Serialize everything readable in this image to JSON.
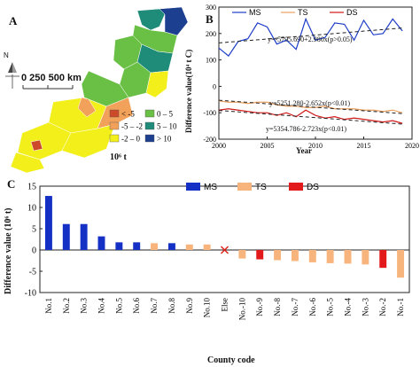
{
  "panel_a": {
    "letter": "A",
    "scale_label": "0 250 500 km",
    "north_label": "N",
    "unit_label": "10⁶ t",
    "legend": [
      {
        "label": "< -5",
        "color": "#cc4a2a"
      },
      {
        "label": "-5 – -2",
        "color": "#f2a15a"
      },
      {
        "label": "-2 – 0",
        "color": "#f3ef1a"
      },
      {
        "label": "0 – 5",
        "color": "#6ac045"
      },
      {
        "label": "5 – 10",
        "color": "#1f8c7a"
      },
      {
        "label": "> 10",
        "color": "#1d3f8f"
      }
    ]
  },
  "panel_b": {
    "letter": "B",
    "ylabel": "Difference value(10⁴ t C)",
    "xlabel": "Year",
    "legend": [
      "MS",
      "TS",
      "DS"
    ],
    "eq_ms": "y=-5795.690+2.980x(p>0.05)",
    "eq_ts": "y=5251.280-2.652x(p<0.01)",
    "eq_ds": "y=5354.786-2.723x(p<0.01)"
  },
  "panel_c": {
    "letter": "C",
    "ylabel": "Difference value (10⁶ t)",
    "xlabel": "County code",
    "legend": [
      "MS",
      "TS",
      "DS"
    ],
    "else_label": "Else"
  },
  "colors": {
    "ms": "#1530c4",
    "ts": "#f7b47c",
    "ds": "#e31a1c",
    "ms_line": "#1c3cc8",
    "ts_line": "#e8a060",
    "ds_line": "#d01818",
    "else_marker": "#e0241a"
  },
  "chart_data": [
    {
      "type": "line",
      "title": "",
      "xlabel": "Year",
      "ylabel": "Difference value(10⁴ t C)",
      "xlim": [
        2000,
        2020
      ],
      "ylim": [
        -200,
        300
      ],
      "xticks": [
        2000,
        2005,
        2010,
        2015,
        2020
      ],
      "yticks": [
        -200,
        -100,
        0,
        100,
        200,
        300
      ],
      "x": [
        2000,
        2001,
        2002,
        2003,
        2004,
        2005,
        2006,
        2007,
        2008,
        2009,
        2010,
        2011,
        2012,
        2013,
        2014,
        2015,
        2016,
        2017,
        2018,
        2019
      ],
      "series": [
        {
          "name": "MS",
          "values": [
            145,
            115,
            170,
            180,
            240,
            225,
            160,
            175,
            140,
            255,
            175,
            185,
            240,
            235,
            175,
            250,
            195,
            200,
            255,
            210
          ]
        },
        {
          "name": "TS",
          "values": [
            -55,
            -60,
            -60,
            -65,
            -60,
            -60,
            -70,
            -75,
            -75,
            -80,
            -80,
            -75,
            -85,
            -85,
            -85,
            -90,
            -90,
            -95,
            -90,
            -100
          ]
        },
        {
          "name": "DS",
          "values": [
            -90,
            -85,
            -90,
            -95,
            -100,
            -100,
            -110,
            -100,
            -115,
            -90,
            -110,
            -120,
            -115,
            -125,
            -120,
            -125,
            -130,
            -135,
            -130,
            -140
          ]
        }
      ],
      "trends": [
        {
          "name": "MS",
          "intercept": -5795.69,
          "slope": 2.98
        },
        {
          "name": "TS",
          "intercept": 5251.28,
          "slope": -2.652
        },
        {
          "name": "DS",
          "intercept": 5354.786,
          "slope": -2.723
        }
      ],
      "legend_position": "top"
    },
    {
      "type": "bar",
      "title": "",
      "xlabel": "County code",
      "ylabel": "Difference value (10⁶ t)",
      "ylim": [
        -10,
        15
      ],
      "yticks": [
        -10,
        -5,
        0,
        5,
        10,
        15
      ],
      "categories": [
        "No.1",
        "No.2",
        "No.3",
        "No.4",
        "No.5",
        "No.6",
        "No.7",
        "No.8",
        "No.9",
        "No.10",
        "Else",
        "No.-10",
        "No.-9",
        "No.-8",
        "No.-7",
        "No.-6",
        "No.-5",
        "No.-4",
        "No.-3",
        "No.-2",
        "No.-1"
      ],
      "values": [
        12.7,
        6.1,
        6.1,
        3.2,
        1.8,
        1.8,
        1.6,
        1.6,
        1.3,
        1.3,
        0,
        -2.0,
        -2.2,
        -2.4,
        -2.6,
        -2.9,
        -3.1,
        -3.2,
        -3.4,
        -4.2,
        -6.5
      ],
      "groups": [
        "MS",
        "MS",
        "MS",
        "MS",
        "MS",
        "MS",
        "TS",
        "MS",
        "TS",
        "TS",
        "Else",
        "TS",
        "DS",
        "TS",
        "TS",
        "TS",
        "TS",
        "TS",
        "TS",
        "DS",
        "TS"
      ],
      "legend_position": "top"
    }
  ]
}
